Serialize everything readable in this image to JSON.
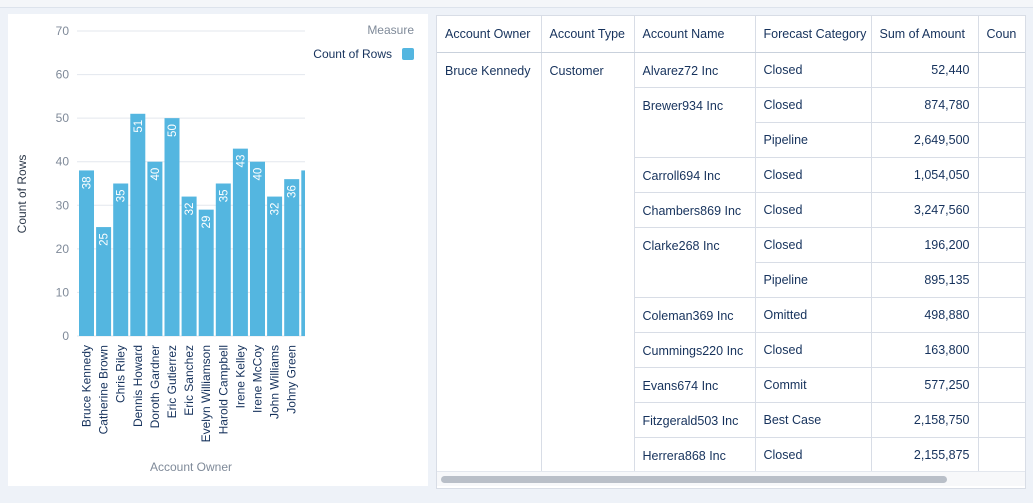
{
  "chart_data": {
    "type": "bar",
    "xlabel": "Account Owner",
    "ylabel": "Count of Rows",
    "legend_title": "Measure",
    "legend_position": "top-right",
    "ylim": [
      0,
      70
    ],
    "yticks": [
      0,
      10,
      20,
      30,
      40,
      50,
      60,
      70
    ],
    "grid": true,
    "bar_color": "#54b6e0",
    "series": [
      {
        "name": "Count of Rows",
        "values": [
          38,
          25,
          35,
          51,
          40,
          50,
          32,
          29,
          35,
          43,
          40,
          32,
          36,
          38
        ]
      }
    ],
    "categories": [
      "Bruce Kennedy",
      "Catherine Brown",
      "Chris Riley",
      "Dennis Howard",
      "Doroth Gardner",
      "Eric Gutierrez",
      "Eric Sanchez",
      "Evelyn Williamson",
      "Harold Campbell",
      "Irene Kelley",
      "Irene McCoy",
      "John Williams",
      "Johny Green",
      ""
    ]
  },
  "table": {
    "columns": [
      "Account Owner",
      "Account Type",
      "Account Name",
      "Forecast Category",
      "Sum of Amount",
      "Coun"
    ],
    "owner": "Bruce Kennedy",
    "account_type": "Customer",
    "rows": [
      {
        "name": "Alvarez72 Inc",
        "category": "Closed",
        "amount": "52,440"
      },
      {
        "name": "Brewer934 Inc",
        "category": "Closed",
        "amount": "874,780"
      },
      {
        "name": "",
        "category": "Pipeline",
        "amount": "2,649,500"
      },
      {
        "name": "Carroll694 Inc",
        "category": "Closed",
        "amount": "1,054,050"
      },
      {
        "name": "Chambers869 Inc",
        "category": "Closed",
        "amount": "3,247,560"
      },
      {
        "name": "Clarke268 Inc",
        "category": "Closed",
        "amount": "196,200"
      },
      {
        "name": "",
        "category": "Pipeline",
        "amount": "895,135"
      },
      {
        "name": "Coleman369 Inc",
        "category": "Omitted",
        "amount": "498,880"
      },
      {
        "name": "Cummings220 Inc",
        "category": "Closed",
        "amount": "163,800"
      },
      {
        "name": "Evans674 Inc",
        "category": "Commit",
        "amount": "577,250"
      },
      {
        "name": "Fitzgerald503 Inc",
        "category": "Best Case",
        "amount": "2,158,750"
      },
      {
        "name": "Herrera868 Inc",
        "category": "Closed",
        "amount": "2,155,875"
      }
    ]
  }
}
